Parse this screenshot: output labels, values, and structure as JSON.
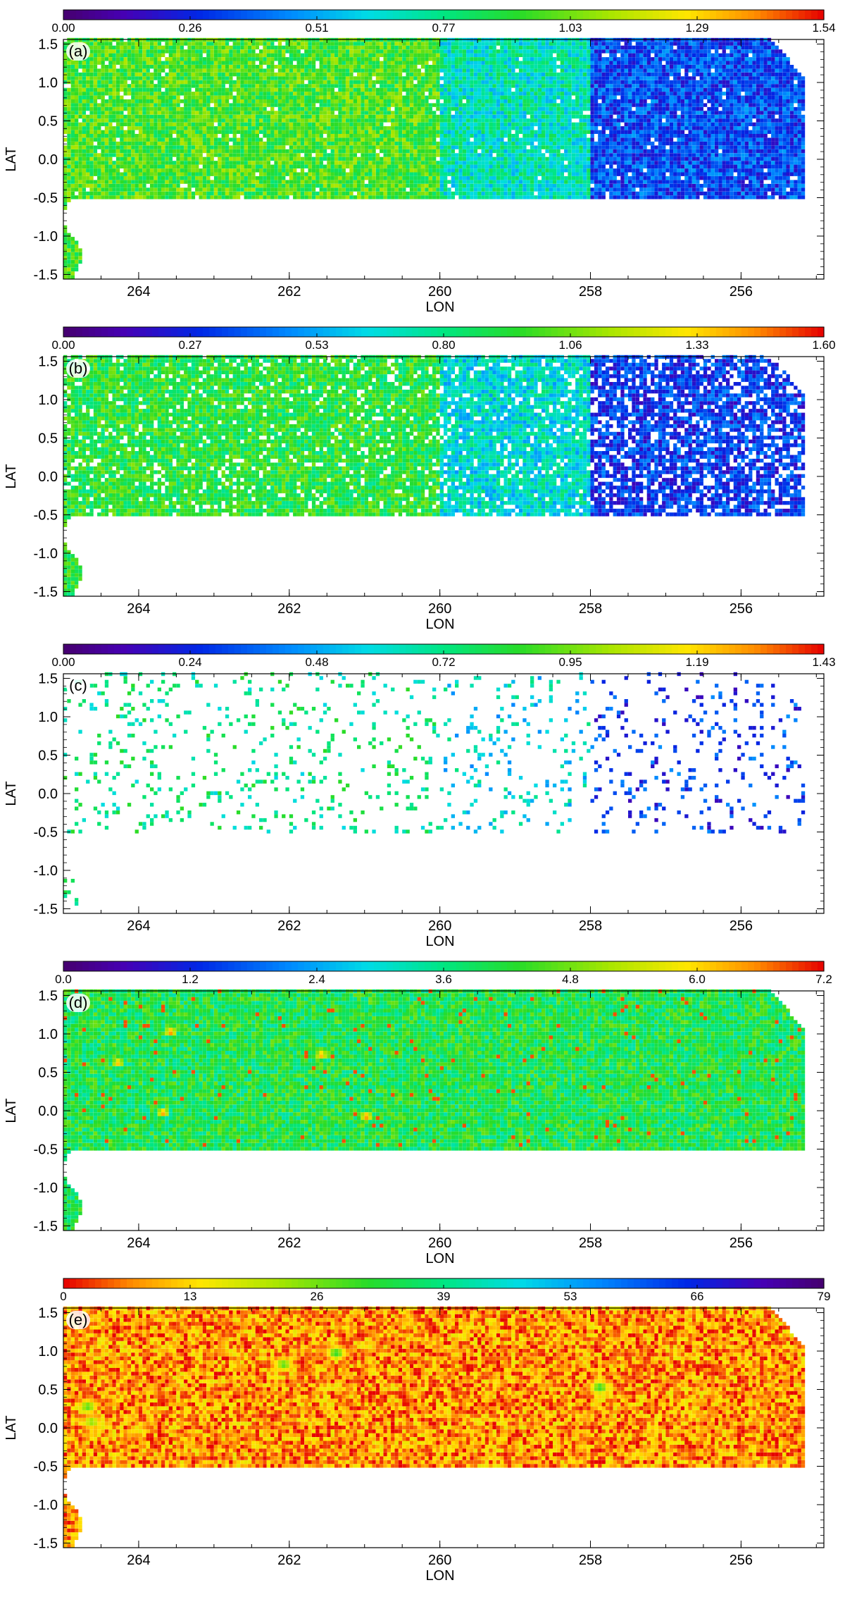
{
  "figure": {
    "panel_count": 5
  },
  "chart_data": [
    {
      "type": "heatmap",
      "panel_label": "(a)",
      "xlabel": "LON",
      "ylabel": "LAT",
      "x_ticks": [
        "264",
        "262",
        "260",
        "258",
        "256"
      ],
      "y_ticks": [
        "1.5",
        "1.0",
        "0.5",
        "0.0",
        "-0.5",
        "-1.0",
        "-1.5"
      ],
      "xlim": [
        265.0,
        254.9
      ],
      "ylim": [
        -1.56,
        1.56
      ],
      "colorbar": {
        "palette": "rainbow",
        "labels": [
          "0.00",
          "0.26",
          "0.51",
          "0.77",
          "1.03",
          "1.29",
          "1.54"
        ],
        "range": [
          0.0,
          1.54
        ]
      },
      "coverage": "dense",
      "regions": [
        {
          "lon": [
            265.0,
            260.0
          ],
          "level": 0.62
        },
        {
          "lon": [
            260.0,
            258.0
          ],
          "level": 0.45
        },
        {
          "lon": [
            258.0,
            255.2
          ],
          "level": 0.22
        }
      ],
      "hotspots": [
        {
          "lon": 261.5,
          "lat": 0.8,
          "value": 1.2
        },
        {
          "lon": 261.0,
          "lat": 0.1,
          "value": 1.0
        },
        {
          "lon": 263.3,
          "lat": 0.25,
          "value": 0.95
        }
      ]
    },
    {
      "type": "heatmap",
      "panel_label": "(b)",
      "xlabel": "LON",
      "ylabel": "LAT",
      "x_ticks": [
        "264",
        "262",
        "260",
        "258",
        "256"
      ],
      "y_ticks": [
        "1.5",
        "1.0",
        "0.5",
        "0.0",
        "-0.5",
        "-1.0",
        "-1.5"
      ],
      "xlim": [
        265.0,
        254.9
      ],
      "ylim": [
        -1.56,
        1.56
      ],
      "colorbar": {
        "palette": "rainbow",
        "labels": [
          "0.00",
          "0.27",
          "0.53",
          "0.80",
          "1.06",
          "1.33",
          "1.60"
        ],
        "range": [
          0.0,
          1.6
        ]
      },
      "coverage": "dense-speckled",
      "regions": [
        {
          "lon": [
            265.0,
            260.0
          ],
          "level": 0.58
        },
        {
          "lon": [
            260.0,
            258.0
          ],
          "level": 0.42
        },
        {
          "lon": [
            258.0,
            255.2
          ],
          "level": 0.2
        }
      ],
      "hotspots": [
        {
          "lon": 263.3,
          "lat": -0.15,
          "value": 1.2
        },
        {
          "lon": 261.2,
          "lat": 0.2,
          "value": 1.0
        },
        {
          "lon": 261.7,
          "lat": 0.85,
          "value": 1.0
        }
      ]
    },
    {
      "type": "heatmap",
      "panel_label": "(c)",
      "xlabel": "LON",
      "ylabel": "LAT",
      "x_ticks": [
        "264",
        "262",
        "260",
        "258",
        "256"
      ],
      "y_ticks": [
        "1.5",
        "1.0",
        "0.5",
        "0.0",
        "-0.5",
        "-1.0",
        "-1.5"
      ],
      "xlim": [
        265.0,
        254.9
      ],
      "ylim": [
        -1.56,
        1.56
      ],
      "colorbar": {
        "palette": "rainbow",
        "labels": [
          "0.00",
          "0.24",
          "0.48",
          "0.72",
          "0.95",
          "1.19",
          "1.43"
        ],
        "range": [
          0.0,
          1.43
        ]
      },
      "coverage": "sparse",
      "regions": [
        {
          "lon": [
            265.0,
            260.0
          ],
          "level": 0.5
        },
        {
          "lon": [
            260.0,
            258.0
          ],
          "level": 0.4
        },
        {
          "lon": [
            258.0,
            255.2
          ],
          "level": 0.2
        }
      ],
      "hotspots": []
    },
    {
      "type": "heatmap",
      "panel_label": "(d)",
      "xlabel": "LON",
      "ylabel": "LAT",
      "x_ticks": [
        "264",
        "262",
        "260",
        "258",
        "256"
      ],
      "y_ticks": [
        "1.5",
        "1.0",
        "0.5",
        "0.0",
        "-0.5",
        "-1.0",
        "-1.5"
      ],
      "xlim": [
        265.0,
        254.9
      ],
      "ylim": [
        -1.56,
        1.56
      ],
      "colorbar": {
        "palette": "rainbow",
        "labels": [
          "0.0",
          "1.2",
          "2.4",
          "3.6",
          "4.8",
          "6.0",
          "7.2"
        ],
        "range": [
          0.0,
          7.2
        ]
      },
      "coverage": "dense-green",
      "regions": [
        {
          "lon": [
            265.0,
            255.2
          ],
          "level": 0.56
        }
      ],
      "hotspots": [
        {
          "lon": 263.6,
          "lat": 1.0,
          "value": 7.0
        },
        {
          "lon": 261.6,
          "lat": 0.7,
          "value": 6.8
        },
        {
          "lon": 261.0,
          "lat": -0.1,
          "value": 7.0
        },
        {
          "lon": 263.7,
          "lat": -0.05,
          "value": 6.9
        },
        {
          "lon": 264.3,
          "lat": 0.6,
          "value": 6.6
        }
      ]
    },
    {
      "type": "heatmap",
      "panel_label": "(e)",
      "xlabel": "LON",
      "ylabel": "LAT",
      "x_ticks": [
        "264",
        "262",
        "260",
        "258",
        "256"
      ],
      "y_ticks": [
        "1.5",
        "1.0",
        "0.5",
        "0.0",
        "-0.5",
        "-1.0",
        "-1.5"
      ],
      "xlim": [
        265.0,
        254.9
      ],
      "ylim": [
        -1.56,
        1.56
      ],
      "colorbar": {
        "palette": "rainbow-reversed",
        "labels": [
          "0",
          "13",
          "26",
          "39",
          "53",
          "66",
          "79"
        ],
        "range": [
          0,
          79
        ]
      },
      "coverage": "dense-orange",
      "regions": [
        {
          "lon": [
            265.0,
            255.2
          ],
          "level": 0.1
        }
      ],
      "hotspots": [
        {
          "lon": 261.4,
          "lat": 0.95,
          "value": 34
        },
        {
          "lon": 262.1,
          "lat": 0.8,
          "value": 30
        },
        {
          "lon": 257.9,
          "lat": 0.5,
          "value": 34
        },
        {
          "lon": 264.7,
          "lat": 0.25,
          "value": 30
        },
        {
          "lon": 264.65,
          "lat": 0.05,
          "value": 26
        }
      ]
    }
  ]
}
